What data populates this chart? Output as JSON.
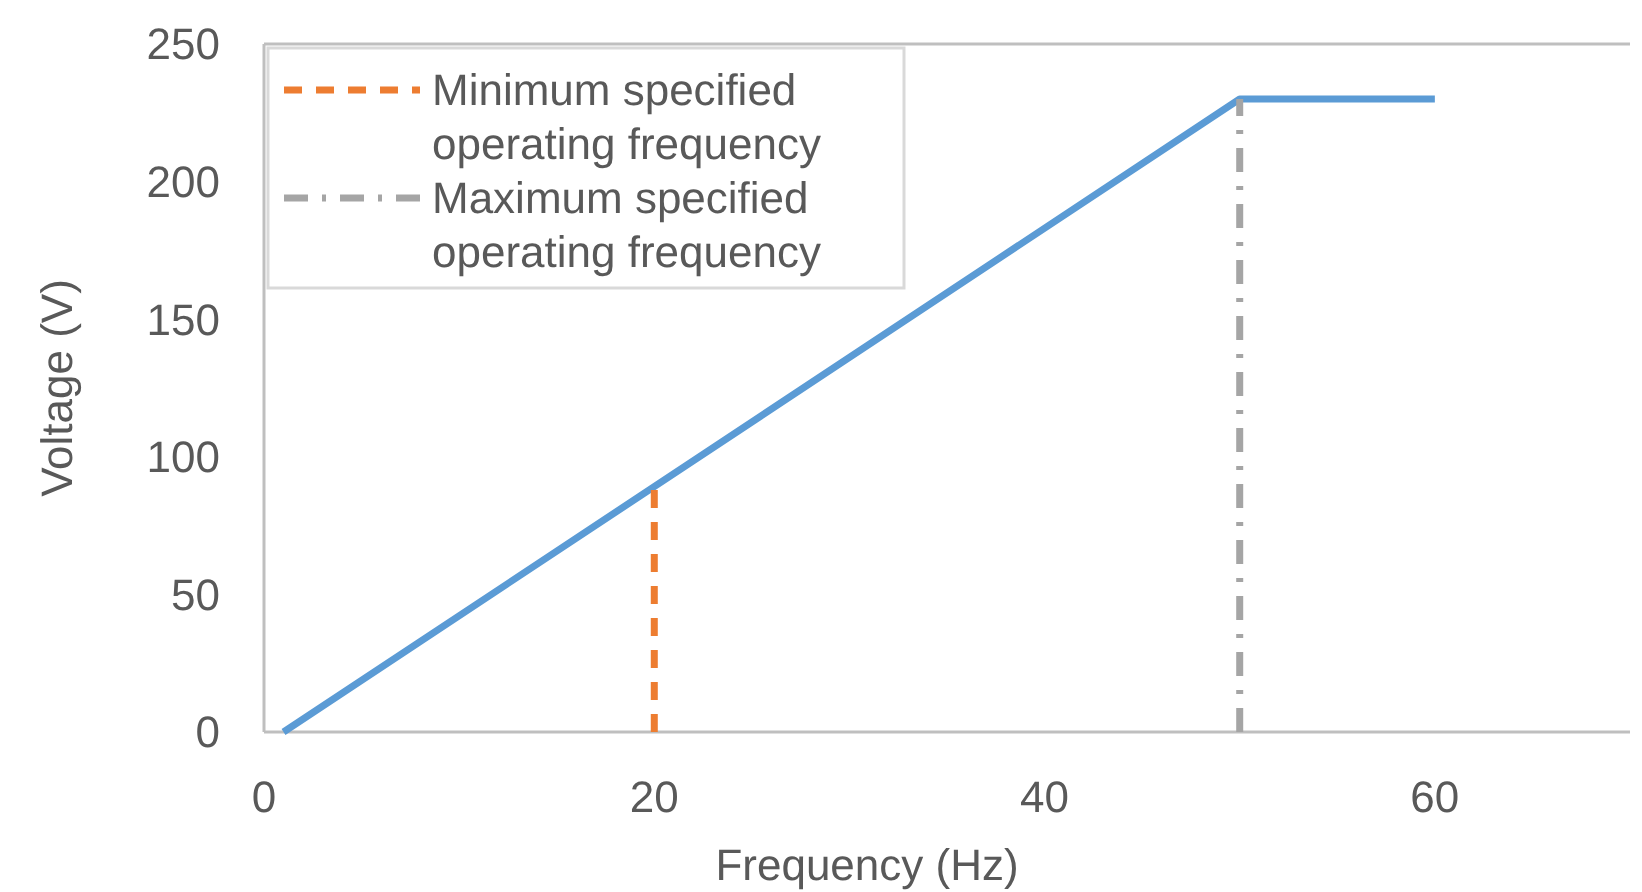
{
  "chart_data": {
    "type": "line",
    "xlabel": "Frequency (Hz)",
    "ylabel": "Voltage (V)",
    "xlim": [
      0,
      70
    ],
    "ylim": [
      0,
      250
    ],
    "xticks": [
      0,
      20,
      40,
      60
    ],
    "yticks": [
      0,
      50,
      100,
      150,
      200,
      250
    ],
    "grid": false,
    "legend": "top left",
    "marker": "none",
    "series": [
      {
        "color": "#5b9bd5",
        "x": [
          1,
          50,
          60
        ],
        "values": [
          0,
          230,
          230
        ],
        "line_style": "solid"
      },
      {
        "name": "Minimum specified operating frequency",
        "color": "#ed7d31",
        "x": [
          20,
          20
        ],
        "values": [
          0,
          90
        ],
        "line_style": "dashed"
      },
      {
        "name": "Maximum specified operating frequency",
        "color": "#a5a5a5",
        "x": [
          50,
          50
        ],
        "values": [
          0,
          230
        ],
        "line_style": "dashdot"
      }
    ]
  }
}
